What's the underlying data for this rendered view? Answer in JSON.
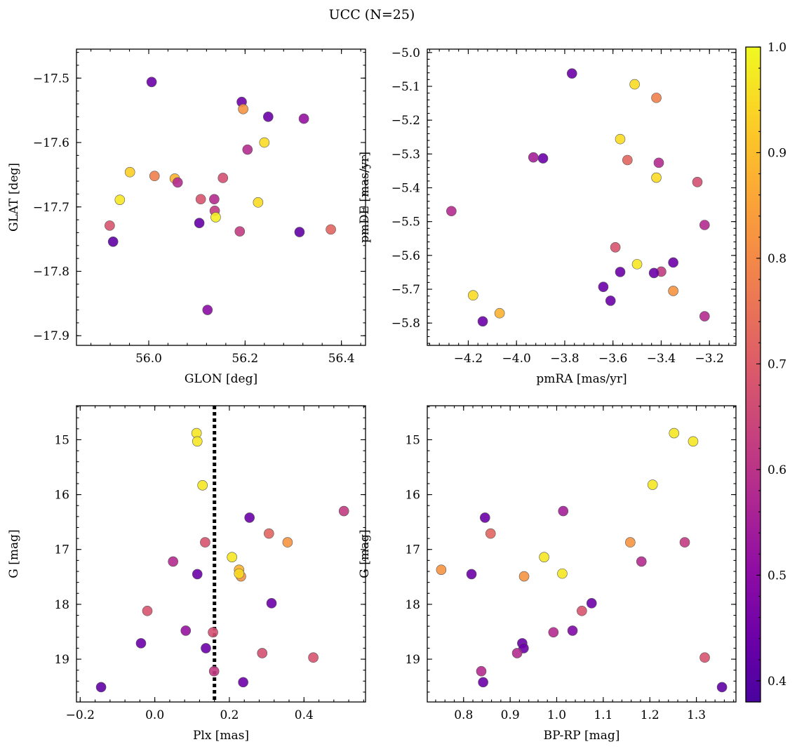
{
  "figure_title": "UCC (N=25)",
  "chart_data": [
    {
      "type": "scatter",
      "xlabel": "GLON [deg]",
      "ylabel": "GLAT [deg]",
      "xlim": [
        55.85,
        56.45
      ],
      "ylim": [
        -17.915,
        -17.455
      ],
      "xticks": [
        56.0,
        56.2,
        56.4
      ],
      "xtick_labels": [
        "56.0",
        "56.2",
        "56.4"
      ],
      "yticks": [
        -17.5,
        -17.6,
        -17.7,
        -17.8,
        -17.9
      ],
      "ytick_labels": [
        "−17.5",
        "−17.6",
        "−17.7",
        "−17.8",
        "−17.9"
      ],
      "x": [
        56.006,
        55.926,
        55.919,
        55.94,
        55.961,
        56.012,
        56.054,
        56.06,
        56.108,
        56.136,
        56.137,
        56.139,
        56.154,
        56.105,
        56.122,
        56.189,
        56.193,
        56.196,
        56.205,
        56.227,
        56.24,
        56.248,
        56.313,
        56.322,
        56.378
      ],
      "y": [
        -17.506,
        -17.754,
        -17.729,
        -17.689,
        -17.646,
        -17.652,
        -17.656,
        -17.662,
        -17.688,
        -17.688,
        -17.706,
        -17.716,
        -17.655,
        -17.725,
        -17.86,
        -17.738,
        -17.537,
        -17.548,
        -17.611,
        -17.693,
        -17.6,
        -17.56,
        -17.739,
        -17.563,
        -17.735
      ],
      "c": [
        0.44,
        0.42,
        0.68,
        0.97,
        0.93,
        0.78,
        0.88,
        0.58,
        0.68,
        0.58,
        0.62,
        0.98,
        0.67,
        0.43,
        0.5,
        0.62,
        0.45,
        0.82,
        0.58,
        0.95,
        0.95,
        0.44,
        0.42,
        0.52,
        0.72
      ]
    },
    {
      "type": "scatter",
      "xlabel": "pmRA [mas/yr]",
      "ylabel": "pmDE [mas/yr]",
      "xlim": [
        -4.37,
        -3.09
      ],
      "ylim": [
        -5.866,
        -4.99
      ],
      "xticks": [
        -4.2,
        -4.0,
        -3.8,
        -3.6,
        -3.4,
        -3.2
      ],
      "xtick_labels": [
        "−4.2",
        "−4.0",
        "−3.8",
        "−3.6",
        "−3.4",
        "−3.2"
      ],
      "yticks": [
        -5.0,
        -5.1,
        -5.2,
        -5.3,
        -5.4,
        -5.5,
        -5.6,
        -5.7,
        -5.8
      ],
      "ytick_labels": [
        "−5.0",
        "−5.1",
        "−5.2",
        "−5.3",
        "−5.4",
        "−5.5",
        "−5.6",
        "−5.7",
        "−5.8"
      ],
      "x": [
        -3.77,
        -3.51,
        -3.42,
        -3.57,
        -3.54,
        -3.41,
        -3.93,
        -3.89,
        -3.42,
        -3.25,
        -4.27,
        -3.22,
        -3.59,
        -3.5,
        -3.35,
        -3.57,
        -3.4,
        -3.43,
        -3.35,
        -3.64,
        -3.61,
        -4.18,
        -4.07,
        -4.14,
        -3.22
      ],
      "y": [
        -5.062,
        -5.094,
        -5.134,
        -5.256,
        -5.318,
        -5.326,
        -5.31,
        -5.313,
        -5.37,
        -5.383,
        -5.469,
        -5.51,
        -5.576,
        -5.626,
        -5.621,
        -5.649,
        -5.648,
        -5.652,
        -5.705,
        -5.693,
        -5.734,
        -5.718,
        -5.771,
        -5.795,
        -5.78
      ],
      "c": [
        0.44,
        0.95,
        0.78,
        0.95,
        0.72,
        0.58,
        0.55,
        0.44,
        0.95,
        0.67,
        0.58,
        0.58,
        0.68,
        0.97,
        0.44,
        0.44,
        0.62,
        0.44,
        0.82,
        0.44,
        0.44,
        0.95,
        0.88,
        0.44,
        0.58
      ]
    },
    {
      "type": "scatter",
      "xlabel": "Plx [mas]",
      "ylabel": "G [mag]",
      "xlim": [
        -0.21,
        0.565
      ],
      "ylim": [
        19.78,
        14.38
      ],
      "y_inverted": true,
      "xticks": [
        -0.2,
        0.0,
        0.2,
        0.4
      ],
      "xtick_labels": [
        "−0.2",
        "0.0",
        "0.2",
        "0.4"
      ],
      "yticks": [
        15,
        16,
        17,
        18,
        19
      ],
      "ytick_labels": [
        "15",
        "16",
        "17",
        "18",
        "19"
      ],
      "vline": 0.16,
      "x": [
        0.112,
        0.114,
        0.128,
        0.254,
        0.507,
        0.306,
        0.356,
        0.135,
        0.207,
        0.049,
        0.226,
        0.231,
        0.226,
        0.114,
        0.313,
        -0.02,
        0.083,
        0.156,
        -0.037,
        0.137,
        0.288,
        0.425,
        0.159,
        0.237,
        -0.144
      ],
      "y": [
        14.88,
        15.03,
        15.83,
        16.42,
        16.3,
        16.71,
        16.87,
        16.87,
        17.14,
        17.22,
        17.37,
        17.49,
        17.44,
        17.45,
        17.98,
        18.12,
        18.48,
        18.51,
        18.71,
        18.8,
        18.89,
        18.97,
        19.22,
        19.42,
        19.51
      ],
      "c": [
        0.97,
        0.97,
        0.97,
        0.44,
        0.62,
        0.72,
        0.82,
        0.68,
        0.97,
        0.58,
        0.88,
        0.82,
        0.95,
        0.44,
        0.44,
        0.68,
        0.52,
        0.67,
        0.44,
        0.44,
        0.67,
        0.68,
        0.62,
        0.44,
        0.42
      ]
    },
    {
      "type": "scatter",
      "xlabel": "BP-RP [mag]",
      "ylabel": "G [mag]",
      "xlim": [
        0.722,
        1.385
      ],
      "ylim": [
        19.78,
        14.38
      ],
      "y_inverted": true,
      "xticks": [
        0.8,
        0.9,
        1.0,
        1.1,
        1.2,
        1.3
      ],
      "xtick_labels": [
        "0.8",
        "0.9",
        "1.0",
        "1.1",
        "1.2",
        "1.3"
      ],
      "yticks": [
        15,
        16,
        17,
        18,
        19
      ],
      "ytick_labels": [
        "15",
        "16",
        "17",
        "18",
        "19"
      ],
      "x": [
        1.252,
        1.293,
        1.206,
        0.846,
        1.014,
        0.858,
        1.158,
        1.275,
        0.973,
        1.182,
        0.752,
        1.012,
        0.93,
        0.817,
        1.075,
        1.054,
        1.034,
        0.993,
        0.926,
        0.929,
        0.915,
        1.318,
        0.838,
        0.842,
        1.355
      ],
      "y": [
        14.88,
        15.03,
        15.82,
        16.42,
        16.3,
        16.71,
        16.87,
        16.87,
        17.14,
        17.22,
        17.37,
        17.44,
        17.49,
        17.45,
        17.98,
        18.12,
        18.48,
        18.51,
        18.71,
        18.8,
        18.89,
        18.97,
        19.22,
        19.42,
        19.51
      ],
      "c": [
        0.97,
        0.97,
        0.97,
        0.44,
        0.55,
        0.72,
        0.82,
        0.62,
        0.97,
        0.58,
        0.82,
        0.97,
        0.82,
        0.44,
        0.44,
        0.68,
        0.48,
        0.58,
        0.44,
        0.44,
        0.58,
        0.68,
        0.58,
        0.44,
        0.42
      ]
    }
  ],
  "colorbar": {
    "colormap": "plasma",
    "range": [
      0.38,
      1.0
    ],
    "ticks": [
      0.4,
      0.5,
      0.6,
      0.7,
      0.8,
      0.9,
      1.0
    ],
    "tick_labels": [
      "0.4",
      "0.5",
      "0.6",
      "0.7",
      "0.8",
      "0.9",
      "1.0"
    ]
  },
  "colors": {
    "vline": "#000000",
    "marker_edge": "#555555"
  }
}
